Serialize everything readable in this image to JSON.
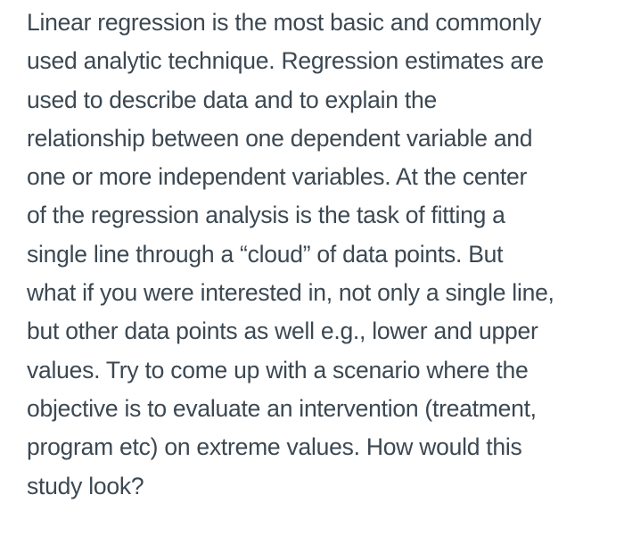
{
  "page": {
    "background_color": "#ffffff",
    "text_color": "#3c4852"
  },
  "paragraph": {
    "lines": [
      "Linear regression is the most basic and commonly",
      "used analytic technique. Regression estimates are",
      "used to describe data and to explain the",
      "relationship between one dependent variable and",
      "one or more independent variables. At the center",
      "of the regression analysis is the task of fitting a",
      "single line through a “cloud” of data points. But",
      "what if you were interested in, not only a single line,",
      "but other data points as well e.g., lower and upper",
      "values. Try to come up with a scenario where the",
      "objective is to evaluate an intervention (treatment,",
      "program etc) on extreme values. How would this",
      "study look?"
    ]
  }
}
